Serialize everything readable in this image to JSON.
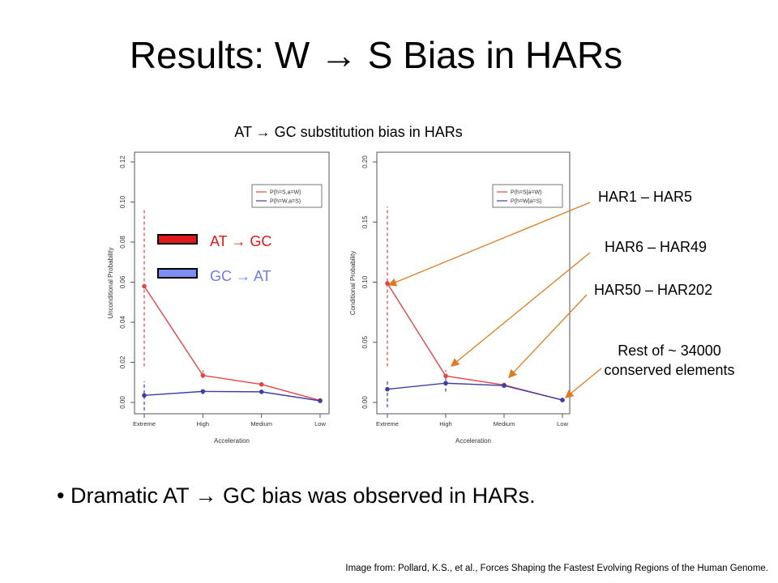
{
  "slide": {
    "title": "Results: W  →  S Bias in HARs",
    "subtitle": "AT  →  GC substitution bias in HARs",
    "bullet": "Dramatic AT  →  GC bias was observed in HARs.",
    "source": "Image from: Pollard, K.S., et al., Forces Shaping the Fastest Evolving Regions of the Human Genome."
  },
  "legend_boxes": [
    {
      "label": "AT  →  GC",
      "color": "#e01818",
      "text_color": "#e01818"
    },
    {
      "label": "GC  →  AT",
      "color": "#7b8ff0",
      "text_color": "#6f7fe0"
    }
  ],
  "annotations": [
    {
      "label": "HAR1 – HAR5"
    },
    {
      "label": "HAR6 – HAR49"
    },
    {
      "label": "HAR50 – HAR202"
    },
    {
      "label": "Rest of ~ 34000\nconserved elements"
    }
  ],
  "colors": {
    "red_series": "#e34545",
    "blue_series": "#3e3ea6",
    "arrow": "#e07a22"
  },
  "chart_data": [
    {
      "type": "line",
      "categories": [
        "Extreme",
        "High",
        "Medium",
        "Low"
      ],
      "xlabel": "Acceleration",
      "ylabel": "Unconditional Probability",
      "ylim": [
        0,
        0.12
      ],
      "yticks": [
        0.0,
        0.02,
        0.04,
        0.06,
        0.08,
        0.1,
        0.12
      ],
      "ytick_labels": [
        "0.00",
        "0.02",
        "0.04",
        "0.06",
        "0.08",
        "0.10",
        "0.12"
      ],
      "legend": "top-right",
      "series": [
        {
          "name": "P(h=S,a=W)",
          "color": "#e34545",
          "values": [
            0.058,
            0.0135,
            0.009,
            0.001
          ],
          "err": [
            0.097,
            0.016,
            0.0095,
            0.0012
          ],
          "err_low": [
            0.018,
            0.012,
            0.0085,
            0.0008
          ]
        },
        {
          "name": "P(h=W,a=S)",
          "color": "#3e3ea6",
          "values": [
            0.0035,
            0.0055,
            0.0053,
            0.0008
          ],
          "err": [
            0.0105,
            0.0065,
            0.0058,
            0.001
          ],
          "err_low": [
            -0.004,
            0.004,
            0.0048,
            0.0006
          ]
        }
      ]
    },
    {
      "type": "line",
      "categories": [
        "Extreme",
        "High",
        "Medium",
        "Low"
      ],
      "xlabel": "Acceleration",
      "ylabel": "Conditional Probability",
      "ylim": [
        0,
        0.2
      ],
      "yticks": [
        0.0,
        0.05,
        0.1,
        0.15,
        0.2
      ],
      "ytick_labels": [
        "0.00",
        "0.05",
        "0.10",
        "0.15",
        "0.20"
      ],
      "legend": "top-right",
      "series": [
        {
          "name": "P(h=S|a=W)",
          "color": "#e34545",
          "values": [
            0.099,
            0.022,
            0.0145,
            0.002
          ],
          "err": [
            0.163,
            0.027,
            0.016,
            0.0025
          ],
          "err_low": [
            0.03,
            0.016,
            0.013,
            0.0015
          ]
        },
        {
          "name": "P(h=W|a=S)",
          "color": "#3e3ea6",
          "values": [
            0.011,
            0.016,
            0.014,
            0.002
          ],
          "err": [
            0.018,
            0.02,
            0.0155,
            0.0025
          ],
          "err_low": [
            -0.004,
            0.009,
            0.0125,
            0.0015
          ]
        }
      ]
    }
  ]
}
